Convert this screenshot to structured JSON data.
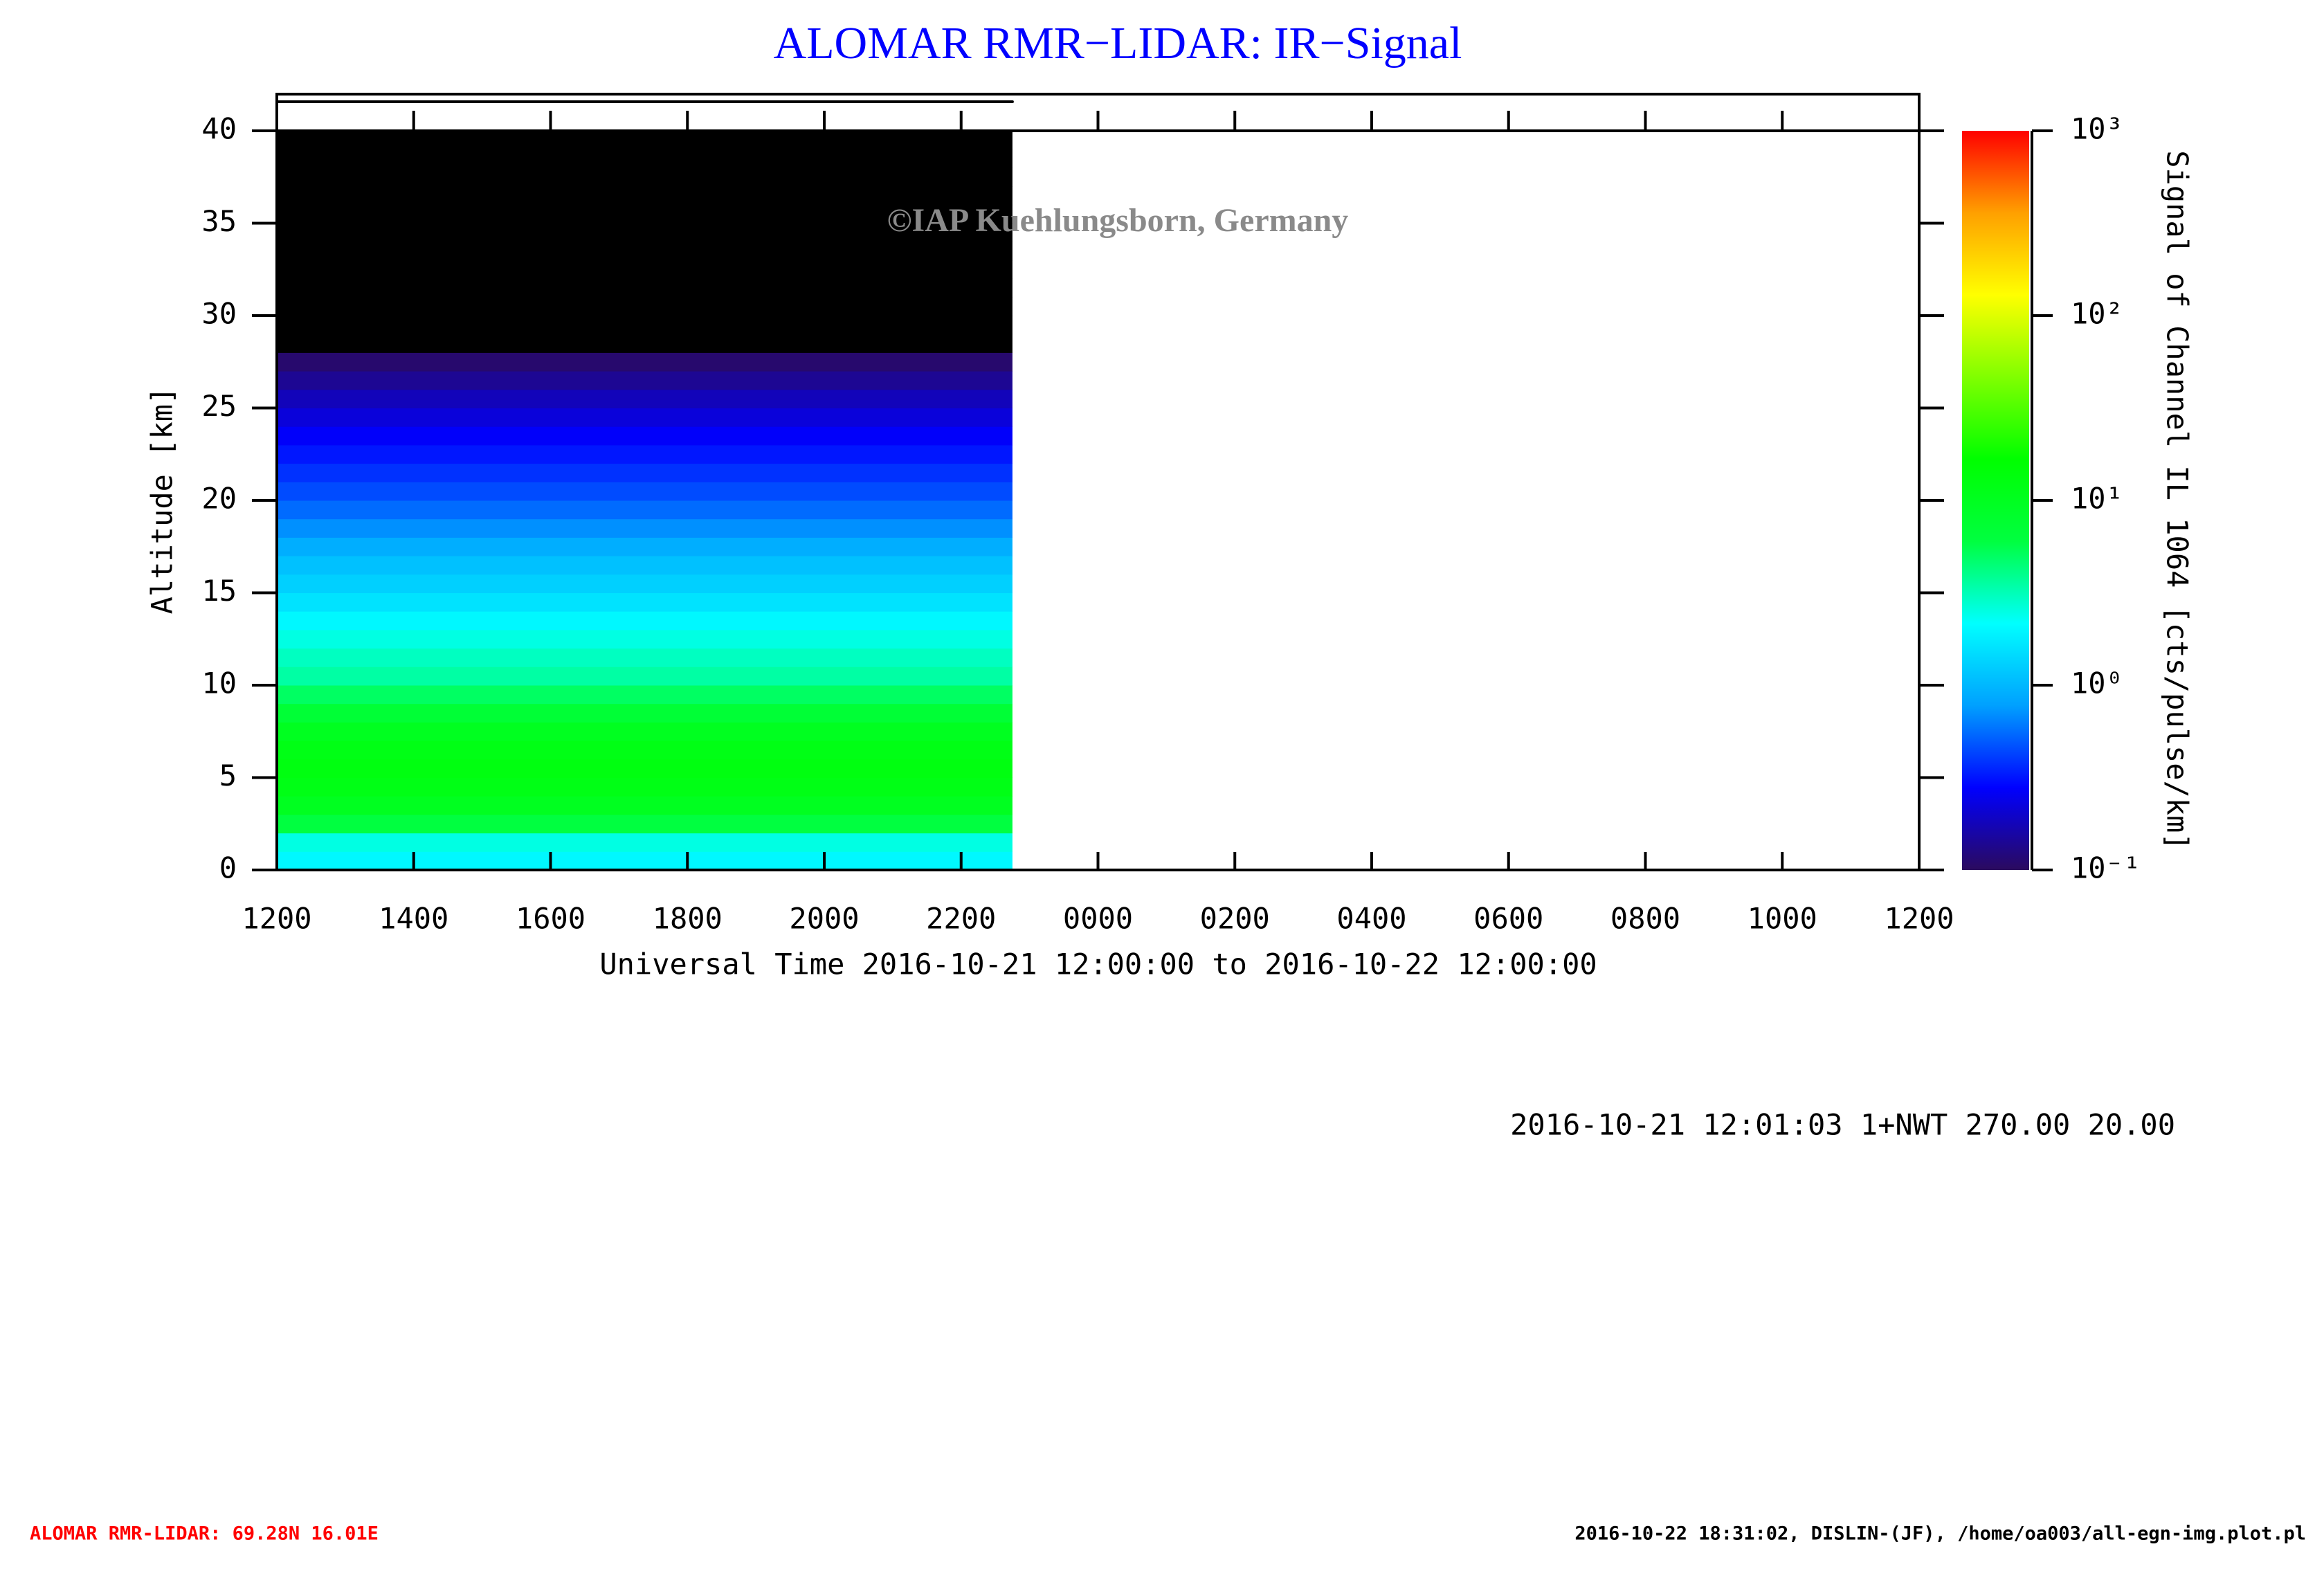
{
  "chart_data": {
    "type": "heatmap",
    "title": "ALOMAR RMR−LIDAR: IR−Signal",
    "xlabel": "Universal Time 2016-10-21 12:00:00 to 2016-10-22 12:00:00",
    "ylabel": "Altitude [km]",
    "colorbar_label": "Signal of Channel IL 1064 [cts/pulse/km]",
    "copyright": "©IAP Kuehlungsborn, Germany",
    "info": "2016-10-21 12:01:03 1+NWT 270.00 20.00",
    "footer_left": "ALOMAR RMR-LIDAR: 69.28N 16.01E",
    "footer_right": "2016-10-22 18:31:02, DISLIN-(JF), /home/oa003/all-egn-img.plot.pl",
    "xlim": [
      0,
      24
    ],
    "xticks": [
      {
        "value": 0,
        "label": "1200"
      },
      {
        "value": 2,
        "label": "1400"
      },
      {
        "value": 4,
        "label": "1600"
      },
      {
        "value": 6,
        "label": "1800"
      },
      {
        "value": 8,
        "label": "2000"
      },
      {
        "value": 10,
        "label": "2200"
      },
      {
        "value": 12,
        "label": "0000"
      },
      {
        "value": 14,
        "label": "0200"
      },
      {
        "value": 16,
        "label": "0400"
      },
      {
        "value": 18,
        "label": "0600"
      },
      {
        "value": 20,
        "label": "0800"
      },
      {
        "value": 22,
        "label": "1000"
      },
      {
        "value": 24,
        "label": "1200"
      }
    ],
    "ylim": [
      0,
      40
    ],
    "yticks": [
      0,
      5,
      10,
      15,
      20,
      25,
      30,
      35,
      40
    ],
    "time_range": [
      0,
      10.75
    ],
    "altitude_bins": [
      0,
      1,
      2,
      3,
      4,
      5,
      6,
      7,
      8,
      9,
      10,
      11,
      12,
      13,
      14,
      15,
      16,
      17,
      18,
      19,
      20,
      21,
      22,
      23,
      24,
      25,
      26,
      27,
      28,
      29,
      30,
      31,
      32,
      33,
      34,
      35,
      36,
      37,
      38,
      39,
      40
    ],
    "values": [
      2,
      2.5,
      6,
      10,
      12,
      13,
      12,
      10,
      7,
      5,
      3.5,
      3,
      2.5,
      2,
      1.6,
      1.3,
      1.1,
      0.9,
      0.7,
      0.55,
      0.45,
      0.38,
      0.32,
      0.27,
      0.22,
      0.18,
      0.14,
      0.11,
      0.08,
      0.06,
      0.05,
      0.05,
      0.05,
      0.05,
      0.05,
      0.05,
      0.05,
      0.05,
      0.05,
      0.05
    ],
    "clim": [
      0.1,
      1000
    ],
    "log_scale": true,
    "cticks": [
      {
        "value": 0.1,
        "label": "10⁻¹"
      },
      {
        "value": 1,
        "label": "10⁰"
      },
      {
        "value": 10,
        "label": "10¹"
      },
      {
        "value": 100,
        "label": "10²"
      },
      {
        "value": 1000,
        "label": "10³"
      }
    ],
    "colormap": [
      "#2b0a5e",
      "#0000ff",
      "#00a0ff",
      "#00ffff",
      "#00ff40",
      "#00ff00",
      "#80ff00",
      "#ffff00",
      "#ffa000",
      "#ff0000"
    ],
    "under_color": "#000000",
    "title_color": "#0000ff",
    "footer_left_color": "#ff0000"
  }
}
